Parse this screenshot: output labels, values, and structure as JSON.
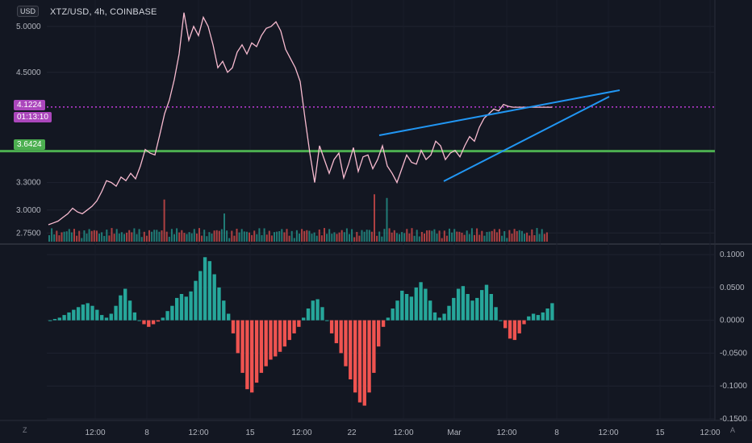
{
  "header": {
    "symbol_line": "XTZ/USD, 4h, COINBASE",
    "currency": "USD"
  },
  "corners": {
    "bottom_left": "Z",
    "bottom_right": "A"
  },
  "colors": {
    "background": "#131722",
    "price_line": "#f8bbd0",
    "horizontal_level": "#4caf50",
    "trend_lines": "#2196f3",
    "current_price_line": "#e040fb",
    "bull": "#26a69a",
    "bear": "#ef5350"
  },
  "price_labels": {
    "current_price": "4.1224",
    "countdown": "01:13:10",
    "level": "3.6424"
  },
  "chart_data": [
    {
      "type": "line",
      "title": "",
      "y_ticks": [
        "5.0000",
        "4.5000",
        "3.3000",
        "3.0000",
        "2.7500"
      ],
      "x_ticks": [
        "12:00",
        "8",
        "12:00",
        "15",
        "12:00",
        "22",
        "12:00",
        "Mar",
        "12:00",
        "8",
        "12:00",
        "15",
        "12:00"
      ],
      "ylim": [
        2.7,
        5.2
      ],
      "x": [
        0,
        2,
        4,
        6,
        8,
        10,
        12,
        14,
        16,
        18,
        20,
        22,
        24,
        26,
        28,
        30,
        32,
        34,
        36,
        38,
        40,
        42,
        44,
        46,
        48,
        50,
        52,
        54,
        56,
        58,
        60,
        62,
        64,
        66,
        68,
        70,
        72,
        74,
        76,
        78,
        80,
        82,
        84,
        86,
        88,
        90,
        92,
        94,
        96,
        98,
        100,
        102,
        104,
        106,
        108,
        110,
        112,
        114,
        116,
        118,
        120,
        122,
        124,
        126,
        128,
        130,
        132,
        134,
        136,
        138,
        140,
        142,
        144,
        146,
        148,
        150,
        152,
        154,
        156,
        158,
        160,
        162,
        164,
        166,
        168,
        170,
        172,
        174,
        176,
        178,
        180,
        182,
        184,
        186,
        188,
        190,
        192,
        194,
        196,
        198,
        200,
        202,
        204,
        206,
        208,
        210,
        212,
        214,
        216,
        218,
        220,
        222,
        224,
        226,
        228,
        230,
        232,
        234,
        236,
        238,
        240
      ],
      "series": [
        {
          "values": [
            2.84,
            2.86,
            2.88,
            2.92,
            2.96,
            3.02,
            2.98,
            2.96,
            3.0,
            3.04,
            3.1,
            3.2,
            3.32,
            3.3,
            3.26,
            3.36,
            3.32,
            3.4,
            3.34,
            3.48,
            3.66,
            3.62,
            3.6,
            3.82,
            4.05,
            4.2,
            4.42,
            4.7,
            5.15,
            4.85,
            5.0,
            4.9,
            5.1,
            5.0,
            4.8,
            4.55,
            4.62,
            4.5,
            4.55,
            4.72,
            4.8,
            4.7,
            4.82,
            4.78,
            4.9,
            4.98,
            5.0,
            5.05,
            4.95,
            4.75,
            4.65,
            4.55,
            4.4,
            4.0,
            3.62,
            3.3,
            3.7,
            3.55,
            3.4,
            3.55,
            3.62,
            3.35,
            3.5,
            3.68,
            3.42,
            3.58,
            3.6,
            3.45,
            3.55,
            3.7,
            3.48,
            3.4,
            3.3,
            3.45,
            3.6,
            3.52,
            3.5,
            3.65,
            3.55,
            3.6,
            3.75,
            3.7,
            3.55,
            3.62,
            3.65,
            3.58,
            3.7,
            3.8,
            3.75,
            3.9,
            4.0,
            4.05,
            4.1,
            4.08,
            4.15,
            4.13,
            4.12,
            4.12,
            4.12,
            4.12,
            4.12,
            4.12,
            4.12,
            4.12,
            4.12,
            4.12,
            4.12,
            4.12,
            4.12,
            4.12,
            4.12,
            4.12,
            4.12,
            4.12,
            4.12,
            4.12,
            4.12,
            4.12,
            4.12,
            4.12,
            4.12
          ]
        }
      ],
      "horizontal_levels": [
        3.6424
      ],
      "current_price": 4.1224
    },
    {
      "type": "bar",
      "title": "",
      "y_ticks": [
        "0.1000",
        "0.0500",
        "0.0000",
        "-0.0500",
        "-0.1000",
        "-0.1500"
      ],
      "ylim": [
        -0.15,
        0.105
      ],
      "values": [
        0.0,
        0.002,
        0.004,
        0.008,
        0.012,
        0.016,
        0.02,
        0.024,
        0.026,
        0.022,
        0.016,
        0.008,
        0.004,
        0.01,
        0.022,
        0.038,
        0.048,
        0.03,
        0.012,
        0.0,
        -0.006,
        -0.01,
        -0.006,
        -0.002,
        0.004,
        0.014,
        0.022,
        0.034,
        0.04,
        0.036,
        0.044,
        0.06,
        0.075,
        0.096,
        0.09,
        0.07,
        0.05,
        0.03,
        0.01,
        -0.02,
        -0.05,
        -0.08,
        -0.105,
        -0.11,
        -0.095,
        -0.08,
        -0.07,
        -0.06,
        -0.055,
        -0.048,
        -0.04,
        -0.03,
        -0.02,
        -0.01,
        0.004,
        0.018,
        0.03,
        0.032,
        0.02,
        0.0,
        -0.02,
        -0.035,
        -0.05,
        -0.07,
        -0.09,
        -0.11,
        -0.125,
        -0.13,
        -0.11,
        -0.08,
        -0.04,
        -0.01,
        0.004,
        0.018,
        0.03,
        0.045,
        0.04,
        0.036,
        0.05,
        0.058,
        0.048,
        0.03,
        0.012,
        0.004,
        0.01,
        0.022,
        0.034,
        0.048,
        0.052,
        0.04,
        0.03,
        0.034,
        0.046,
        0.054,
        0.04,
        0.02,
        0.0,
        -0.012,
        -0.028,
        -0.03,
        -0.02,
        -0.006,
        0.006,
        0.01,
        0.008,
        0.012,
        0.018,
        0.026
      ],
      "colors_by_sign": {
        "positive": "#26a69a",
        "negative": "#ef5350"
      }
    }
  ]
}
